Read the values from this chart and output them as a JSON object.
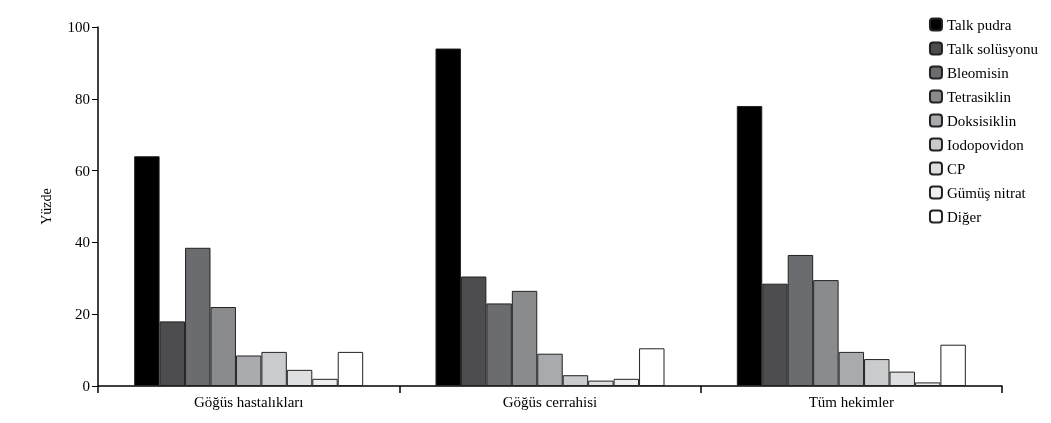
{
  "chart_data": {
    "type": "bar",
    "ylabel": "Yüzde",
    "categories": [
      "Göğüs hastalıkları",
      "Göğüs cerrahisi",
      "Tüm hekimler"
    ],
    "series": [
      {
        "name": "Talk pudra",
        "color": "#000000",
        "values": [
          64,
          94,
          78
        ]
      },
      {
        "name": "Talk solüsyonu",
        "color": "#4d4d4f",
        "values": [
          18,
          30.5,
          28.5
        ]
      },
      {
        "name": "Bleomisin",
        "color": "#6b6c70",
        "values": [
          38.5,
          23,
          36.5
        ]
      },
      {
        "name": "Tetrasiklin",
        "color": "#8a8b8d",
        "values": [
          22,
          26.5,
          29.5
        ]
      },
      {
        "name": "Doksisiklin",
        "color": "#a9aaad",
        "values": [
          8.5,
          9,
          9.5
        ]
      },
      {
        "name": "Iodopovidon",
        "color": "#cacbcd",
        "values": [
          9.5,
          3,
          7.5
        ]
      },
      {
        "name": "CP",
        "color": "#dedfe0",
        "values": [
          4.5,
          1.5,
          4
        ]
      },
      {
        "name": "Gümüş nitrat",
        "color": "#efefef",
        "values": [
          2,
          2,
          1
        ]
      },
      {
        "name": "Diğer",
        "color": "#ffffff",
        "values": [
          9.5,
          10.5,
          11.5
        ]
      }
    ],
    "ylim": [
      0,
      100
    ],
    "yticks": [
      0,
      20,
      40,
      60,
      80,
      100
    ],
    "grid": false,
    "legend": "top right"
  }
}
